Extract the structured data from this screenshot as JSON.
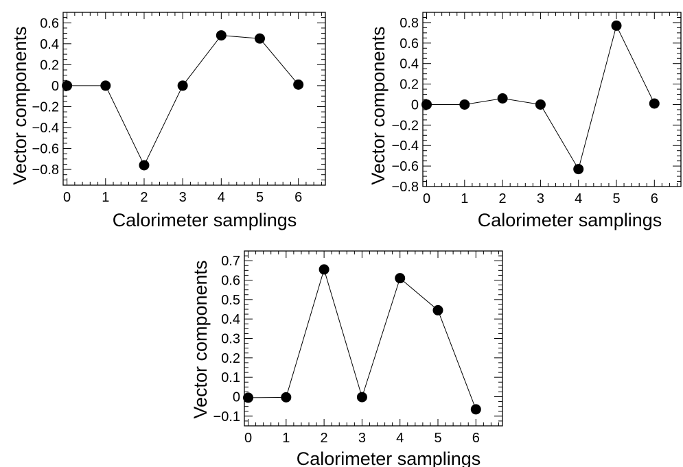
{
  "chart_data": [
    {
      "type": "line",
      "xlabel": "Calorimeter samplings",
      "ylabel": "Vector components",
      "xlim": [
        -0.1,
        6.7
      ],
      "ylim": [
        -0.95,
        0.7
      ],
      "x_ticks": [
        0,
        1,
        2,
        3,
        4,
        5,
        6
      ],
      "y_ticks": [
        -0.8,
        -0.6,
        -0.4,
        -0.2,
        0,
        0.2,
        0.4,
        0.6
      ],
      "y_tick_labels": [
        "−0.8",
        "−0.6",
        "−0.4",
        "−0.2",
        "0",
        "0.2",
        "0.4",
        "0.6"
      ],
      "x": [
        0,
        1,
        2,
        3,
        4,
        5,
        6
      ],
      "y": [
        0.0,
        0.0,
        -0.76,
        0.0,
        0.48,
        0.45,
        0.01
      ],
      "grid": false,
      "marker": "filled-circle",
      "color": "#000000"
    },
    {
      "type": "line",
      "xlabel": "Calorimeter samplings",
      "ylabel": "Vector components",
      "xlim": [
        -0.1,
        6.7
      ],
      "ylim": [
        -0.8,
        0.9
      ],
      "x_ticks": [
        0,
        1,
        2,
        3,
        4,
        5,
        6
      ],
      "y_ticks": [
        -0.8,
        -0.6,
        -0.4,
        -0.2,
        0,
        0.2,
        0.4,
        0.6,
        0.8
      ],
      "y_tick_labels": [
        "−0.8",
        "−0.6",
        "−0.4",
        "−0.2",
        "0",
        "0.2",
        "0.4",
        "0.6",
        "0.8"
      ],
      "x": [
        0,
        1,
        2,
        3,
        4,
        5,
        6
      ],
      "y": [
        0.0,
        0.0,
        0.06,
        0.0,
        -0.63,
        0.77,
        0.01
      ],
      "grid": false,
      "marker": "filled-circle",
      "color": "#000000"
    },
    {
      "type": "line",
      "xlabel": "Calorimeter samplings",
      "ylabel": "Vector components",
      "xlim": [
        -0.1,
        6.7
      ],
      "ylim": [
        -0.15,
        0.75
      ],
      "x_ticks": [
        0,
        1,
        2,
        3,
        4,
        5,
        6
      ],
      "y_ticks": [
        -0.1,
        0,
        0.1,
        0.2,
        0.3,
        0.4,
        0.5,
        0.6,
        0.7
      ],
      "y_tick_labels": [
        "−0.1",
        "0",
        "0.1",
        "0.2",
        "0.3",
        "0.4",
        "0.5",
        "0.6",
        "0.7"
      ],
      "x": [
        0,
        1,
        2,
        3,
        4,
        5,
        6
      ],
      "y": [
        -0.005,
        -0.003,
        0.655,
        -0.002,
        0.61,
        0.445,
        -0.065
      ],
      "grid": false,
      "marker": "filled-circle",
      "color": "#000000"
    }
  ]
}
